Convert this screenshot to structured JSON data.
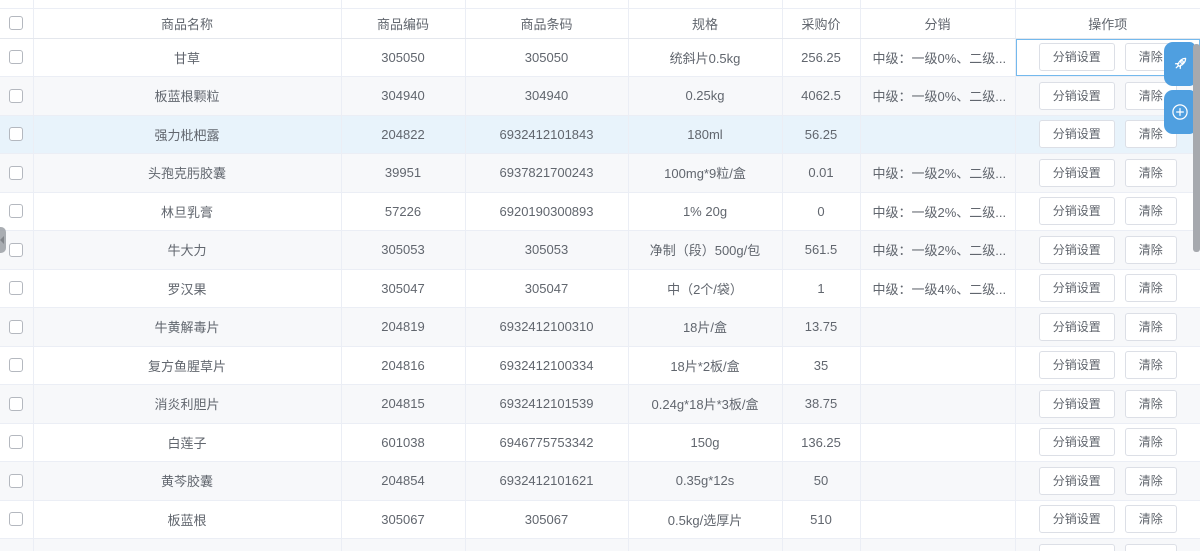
{
  "colors": {
    "accent": "#4f9fe0",
    "highlight_row": "#e8f3fb",
    "zebra_row": "#f7f8fa",
    "border": "#ebeef5",
    "text": "#61666e",
    "focus_border": "#74b9ed"
  },
  "table": {
    "columns": [
      {
        "key": "name",
        "label": "商品名称"
      },
      {
        "key": "code",
        "label": "商品编码"
      },
      {
        "key": "barcode",
        "label": "商品条码"
      },
      {
        "key": "spec",
        "label": "规格"
      },
      {
        "key": "price",
        "label": "采购价"
      },
      {
        "key": "dist",
        "label": "分销"
      },
      {
        "key": "ops",
        "label": "操作项"
      }
    ],
    "action_buttons": {
      "distribution": "分销设置",
      "clear": "清除"
    },
    "rows": [
      {
        "name": "甘草",
        "code": "305050",
        "barcode": "305050",
        "spec": "统斜片0.5kg",
        "price": "256.25",
        "dist": "中级：一级0%、二级...",
        "op_focus": true
      },
      {
        "name": "板蓝根颗粒",
        "code": "304940",
        "barcode": "304940",
        "spec": "0.25kg",
        "price": "4062.5",
        "dist": "中级：一级0%、二级..."
      },
      {
        "name": "强力枇杷露",
        "code": "204822",
        "barcode": "6932412101843",
        "spec": "180ml",
        "price": "56.25",
        "dist": "",
        "highlight": true
      },
      {
        "name": "头孢克肟胶囊",
        "code": "39951",
        "barcode": "6937821700243",
        "spec": "100mg*9粒/盒",
        "price": "0.01",
        "dist": "中级：一级2%、二级..."
      },
      {
        "name": "林旦乳膏",
        "code": "57226",
        "barcode": "6920190300893",
        "spec": "1% 20g",
        "price": "0",
        "dist": "中级：一级2%、二级..."
      },
      {
        "name": "牛大力",
        "code": "305053",
        "barcode": "305053",
        "spec": "净制（段）500g/包",
        "price": "561.5",
        "dist": "中级：一级2%、二级..."
      },
      {
        "name": "罗汉果",
        "code": "305047",
        "barcode": "305047",
        "spec": "中（2个/袋）",
        "price": "1",
        "dist": "中级：一级4%、二级..."
      },
      {
        "name": "牛黄解毒片",
        "code": "204819",
        "barcode": "6932412100310",
        "spec": "18片/盒",
        "price": "13.75",
        "dist": ""
      },
      {
        "name": "复方鱼腥草片",
        "code": "204816",
        "barcode": "6932412100334",
        "spec": "18片*2板/盒",
        "price": "35",
        "dist": ""
      },
      {
        "name": "消炎利胆片",
        "code": "204815",
        "barcode": "6932412101539",
        "spec": "0.24g*18片*3板/盒",
        "price": "38.75",
        "dist": ""
      },
      {
        "name": "白莲子",
        "code": "601038",
        "barcode": "6946775753342",
        "spec": "150g",
        "price": "136.25",
        "dist": ""
      },
      {
        "name": "黄芩胶囊",
        "code": "204854",
        "barcode": "6932412101621",
        "spec": "0.35g*12s",
        "price": "50",
        "dist": ""
      },
      {
        "name": "板蓝根",
        "code": "305067",
        "barcode": "305067",
        "spec": "0.5kg/选厚片",
        "price": "510",
        "dist": ""
      },
      {
        "name": "",
        "code": "",
        "barcode": "",
        "spec": "",
        "price": "",
        "dist": "",
        "partial": true
      }
    ]
  },
  "floating_tools": {
    "rocket": "rocket-tool",
    "add": "add-tool"
  }
}
